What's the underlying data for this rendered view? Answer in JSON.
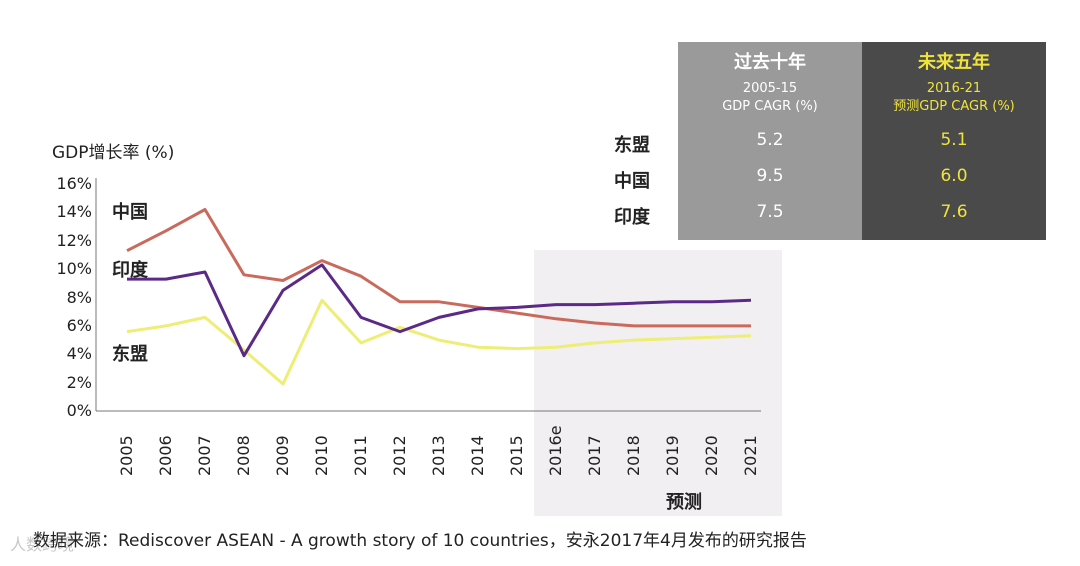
{
  "chart_data": {
    "type": "line",
    "ylabel": "GDP增长率 (%)",
    "ylim": [
      0,
      16
    ],
    "yticks": [
      "0%",
      "2%",
      "4%",
      "6%",
      "8%",
      "10%",
      "12%",
      "14%",
      "16%"
    ],
    "categories": [
      "2005",
      "2006",
      "2007",
      "2008",
      "2009",
      "2010",
      "2011",
      "2012",
      "2013",
      "2014",
      "2015",
      "2016e",
      "2017",
      "2018",
      "2019",
      "2020",
      "2021"
    ],
    "forecast_label": "预测",
    "forecast_start": "2016e",
    "series": [
      {
        "name": "中国",
        "color": "#c96a5c",
        "values": [
          11.3,
          12.7,
          14.2,
          9.6,
          9.2,
          10.6,
          9.5,
          7.7,
          7.7,
          7.3,
          6.9,
          6.5,
          6.2,
          6.0,
          6.0,
          6.0,
          6.0
        ]
      },
      {
        "name": "印度",
        "color": "#5b2a86",
        "values": [
          9.3,
          9.3,
          9.8,
          3.9,
          8.5,
          10.3,
          6.6,
          5.6,
          6.6,
          7.2,
          7.3,
          7.5,
          7.5,
          7.6,
          7.7,
          7.7,
          7.8
        ]
      },
      {
        "name": "东盟",
        "color": "#eeee77",
        "values": [
          5.6,
          6.0,
          6.6,
          4.3,
          1.9,
          7.8,
          4.8,
          5.9,
          5.0,
          4.5,
          4.4,
          4.5,
          4.8,
          5.0,
          5.1,
          5.2,
          5.3
        ]
      }
    ]
  },
  "table": {
    "past": {
      "head": "过去十年",
      "sub1": "2005-15",
      "sub2": "GDP CAGR (%)",
      "values": [
        "5.2",
        "9.5",
        "7.5"
      ]
    },
    "future": {
      "head": "未来五年",
      "sub1": "2016-21",
      "sub2": "预测GDP CAGR (%)",
      "values": [
        "5.1",
        "6.0",
        "7.6"
      ]
    },
    "rows": [
      "东盟",
      "中国",
      "印度"
    ]
  },
  "source": "数据来源：Rediscover ASEAN - A growth story of 10 countries，安永2017年4月发布的研究报告",
  "watermark": "人数跨境"
}
